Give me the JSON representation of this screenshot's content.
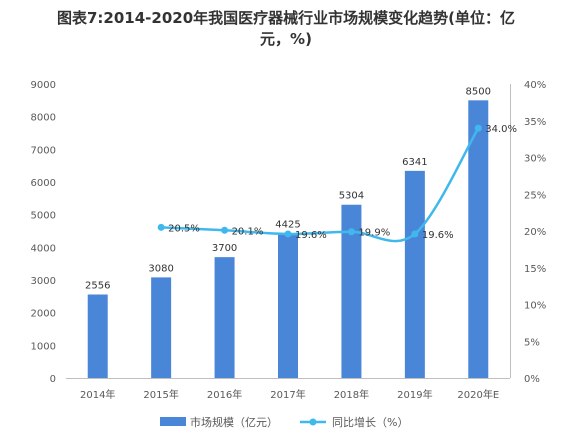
{
  "chart_data": {
    "type": "bar",
    "title_line1": "图表7:2014-2020年我国医疗器械行业市场规模变化趋势(单位：亿",
    "title_line2": "元，%)",
    "categories": [
      "2014年",
      "2015年",
      "2016年",
      "2017年",
      "2018年",
      "2019年",
      "2020年E"
    ],
    "series": [
      {
        "name": "市场规模（亿元）",
        "kind": "bar",
        "axis": "left",
        "color": "#4a86d8",
        "values": [
          2556,
          3080,
          3700,
          4425,
          5304,
          6341,
          8500
        ],
        "labels": [
          "2556",
          "3080",
          "3700",
          "4425",
          "5304",
          "6341",
          "8500"
        ]
      },
      {
        "name": "同比增长（%）",
        "kind": "line",
        "axis": "right",
        "color": "#40b8ee",
        "values": [
          null,
          20.5,
          20.1,
          19.6,
          19.9,
          19.6,
          34.0
        ],
        "labels": [
          "",
          "20.5%",
          "20.1%",
          "19.6%",
          "19.9%",
          "19.6%",
          "34.0%"
        ]
      }
    ],
    "y_left": {
      "min": 0,
      "max": 9000,
      "ticks": [
        0,
        1000,
        2000,
        3000,
        4000,
        5000,
        6000,
        7000,
        8000,
        9000
      ],
      "tick_labels": [
        "0",
        "1000",
        "2000",
        "3000",
        "4000",
        "5000",
        "6000",
        "7000",
        "8000",
        "9000"
      ]
    },
    "y_right": {
      "min": 0,
      "max": 40,
      "ticks": [
        0,
        5,
        10,
        15,
        20,
        25,
        30,
        35,
        40
      ],
      "tick_labels": [
        "0%",
        "5%",
        "10%",
        "15%",
        "20%",
        "25%",
        "30%",
        "35%",
        "40%"
      ]
    },
    "grid": false,
    "legend_position": "bottom-center"
  }
}
